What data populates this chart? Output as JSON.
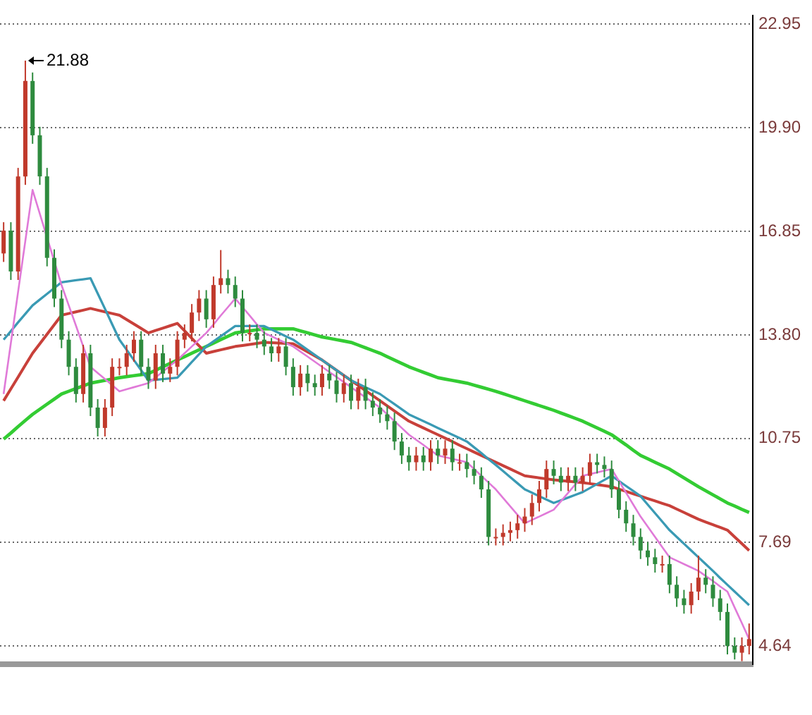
{
  "chart_data": {
    "type": "candlestick",
    "categories": [
      null,
      null,
      null,
      null,
      null,
      null,
      null,
      null,
      null,
      null,
      null,
      null,
      null,
      null,
      null,
      null,
      null,
      null,
      null,
      null,
      null,
      null,
      null,
      null,
      null,
      null,
      null,
      null,
      null,
      null,
      null,
      null,
      null,
      null,
      null,
      null,
      null,
      null,
      null,
      null,
      null,
      null,
      null,
      null,
      null,
      null,
      null,
      null,
      null,
      null,
      null,
      null,
      null,
      null,
      null,
      null,
      null,
      null,
      null,
      null,
      null,
      null,
      null,
      null,
      null,
      null,
      null,
      null,
      null,
      null,
      null,
      null,
      null,
      null,
      null,
      null,
      null,
      null,
      null,
      null,
      null,
      null,
      null,
      null,
      null,
      null,
      null,
      null,
      null,
      null,
      null,
      null,
      null,
      null,
      null,
      null,
      null,
      null,
      null,
      null,
      null,
      null,
      null,
      null
    ],
    "ohlc": [
      [
        16.2,
        17.12,
        15.95,
        16.87
      ],
      [
        16.87,
        17.12,
        15.42,
        15.67
      ],
      [
        15.67,
        18.72,
        15.42,
        18.47
      ],
      [
        18.47,
        21.88,
        18.22,
        21.28
      ],
      [
        21.28,
        21.53,
        19.43,
        19.68
      ],
      [
        19.68,
        19.93,
        18.22,
        18.47
      ],
      [
        18.47,
        18.72,
        15.82,
        16.07
      ],
      [
        16.07,
        16.32,
        14.62,
        14.87
      ],
      [
        14.87,
        15.12,
        13.41,
        13.66
      ],
      [
        13.66,
        13.91,
        12.61,
        12.86
      ],
      [
        12.86,
        13.11,
        11.81,
        12.06
      ],
      [
        12.06,
        13.51,
        11.81,
        13.26
      ],
      [
        13.26,
        13.51,
        11.41,
        11.66
      ],
      [
        11.66,
        11.91,
        10.81,
        11.06
      ],
      [
        11.06,
        11.91,
        10.81,
        11.66
      ],
      [
        11.66,
        13.11,
        11.41,
        12.86
      ],
      [
        12.86,
        13.11,
        12.61,
        12.86
      ],
      [
        12.86,
        13.51,
        12.61,
        13.26
      ],
      [
        13.26,
        13.91,
        13.01,
        13.66
      ],
      [
        13.66,
        13.91,
        12.61,
        12.86
      ],
      [
        12.86,
        13.11,
        12.21,
        12.46
      ],
      [
        12.46,
        13.51,
        12.21,
        13.26
      ],
      [
        13.26,
        13.51,
        12.41,
        12.66
      ],
      [
        12.66,
        13.11,
        12.41,
        12.86
      ],
      [
        12.86,
        13.91,
        12.61,
        13.66
      ],
      [
        13.66,
        14.11,
        13.41,
        13.86
      ],
      [
        13.86,
        14.71,
        13.61,
        14.46
      ],
      [
        14.46,
        15.12,
        14.21,
        14.87
      ],
      [
        14.87,
        15.12,
        14.01,
        14.26
      ],
      [
        14.26,
        15.52,
        14.01,
        15.27
      ],
      [
        15.27,
        16.3,
        15.02,
        15.47
      ],
      [
        15.47,
        15.72,
        15.02,
        15.27
      ],
      [
        15.27,
        15.52,
        14.62,
        14.87
      ],
      [
        14.87,
        15.12,
        13.61,
        13.86
      ],
      [
        13.86,
        14.11,
        13.61,
        13.86
      ],
      [
        13.86,
        14.11,
        13.41,
        13.66
      ],
      [
        13.66,
        13.91,
        13.21,
        13.46
      ],
      [
        13.46,
        13.71,
        13.01,
        13.26
      ],
      [
        13.26,
        13.71,
        13.01,
        13.46
      ],
      [
        13.46,
        13.71,
        12.61,
        12.86
      ],
      [
        12.86,
        13.11,
        12.01,
        12.26
      ],
      [
        12.26,
        12.91,
        12.01,
        12.66
      ],
      [
        12.66,
        12.91,
        12.13,
        12.38
      ],
      [
        12.38,
        12.63,
        12.01,
        12.26
      ],
      [
        12.26,
        12.91,
        12.01,
        12.66
      ],
      [
        12.66,
        12.91,
        12.21,
        12.46
      ],
      [
        12.46,
        12.71,
        11.81,
        12.06
      ],
      [
        12.06,
        12.63,
        11.81,
        12.38
      ],
      [
        12.38,
        12.63,
        11.61,
        11.86
      ],
      [
        11.86,
        12.51,
        11.61,
        12.26
      ],
      [
        12.26,
        12.51,
        11.61,
        11.86
      ],
      [
        11.86,
        12.11,
        11.41,
        11.66
      ],
      [
        11.66,
        11.91,
        11.21,
        11.46
      ],
      [
        11.46,
        11.71,
        11.01,
        11.26
      ],
      [
        11.26,
        11.51,
        10.41,
        10.66
      ],
      [
        10.66,
        10.91,
        10.0,
        10.25
      ],
      [
        10.25,
        10.5,
        9.8,
        10.05
      ],
      [
        10.05,
        10.5,
        9.8,
        10.25
      ],
      [
        10.25,
        10.5,
        9.8,
        10.05
      ],
      [
        10.05,
        10.7,
        9.8,
        10.45
      ],
      [
        10.45,
        10.7,
        10.0,
        10.25
      ],
      [
        10.25,
        10.7,
        10.0,
        10.45
      ],
      [
        10.45,
        10.7,
        9.8,
        10.05
      ],
      [
        10.05,
        10.3,
        9.8,
        10.05
      ],
      [
        10.05,
        10.3,
        9.6,
        9.85
      ],
      [
        9.85,
        10.1,
        9.4,
        9.65
      ],
      [
        9.65,
        9.9,
        9.0,
        9.25
      ],
      [
        9.25,
        9.5,
        7.6,
        7.85
      ],
      [
        7.85,
        8.1,
        7.6,
        7.85
      ],
      [
        7.85,
        8.22,
        7.6,
        7.97
      ],
      [
        7.97,
        8.3,
        7.72,
        8.05
      ],
      [
        8.05,
        8.5,
        7.8,
        8.25
      ],
      [
        8.25,
        8.7,
        8.0,
        8.45
      ],
      [
        8.45,
        9.1,
        8.2,
        8.85
      ],
      [
        8.85,
        9.5,
        8.6,
        9.25
      ],
      [
        9.25,
        10.1,
        9.0,
        9.85
      ],
      [
        9.85,
        10.1,
        9.4,
        9.65
      ],
      [
        9.65,
        9.9,
        9.2,
        9.45
      ],
      [
        9.45,
        9.9,
        9.2,
        9.65
      ],
      [
        9.65,
        9.9,
        9.2,
        9.45
      ],
      [
        9.45,
        9.9,
        9.2,
        9.65
      ],
      [
        9.65,
        10.3,
        9.4,
        10.05
      ],
      [
        10.05,
        10.3,
        9.72,
        9.97
      ],
      [
        9.97,
        10.22,
        9.6,
        9.85
      ],
      [
        9.85,
        10.1,
        9.0,
        9.25
      ],
      [
        9.25,
        9.5,
        8.4,
        8.65
      ],
      [
        8.65,
        8.9,
        8.0,
        8.25
      ],
      [
        8.25,
        8.5,
        7.6,
        7.85
      ],
      [
        7.85,
        8.1,
        7.2,
        7.45
      ],
      [
        7.45,
        7.7,
        7.0,
        7.25
      ],
      [
        7.25,
        7.5,
        6.8,
        7.05
      ],
      [
        7.05,
        7.3,
        6.8,
        7.05
      ],
      [
        7.05,
        7.3,
        6.19,
        6.44
      ],
      [
        6.44,
        6.69,
        5.79,
        6.04
      ],
      [
        6.04,
        6.29,
        5.59,
        5.84
      ],
      [
        5.84,
        6.49,
        5.59,
        6.24
      ],
      [
        6.24,
        7.3,
        5.99,
        6.65
      ],
      [
        6.65,
        6.9,
        6.19,
        6.44
      ],
      [
        6.44,
        6.69,
        5.79,
        6.04
      ],
      [
        6.04,
        6.29,
        5.39,
        5.64
      ],
      [
        5.64,
        5.89,
        4.39,
        4.64
      ],
      [
        4.64,
        4.89,
        4.24,
        4.44
      ],
      [
        4.44,
        4.89,
        4.19,
        4.64
      ],
      [
        4.64,
        5.3,
        4.39,
        4.84
      ]
    ],
    "series": [
      {
        "type": "line",
        "color": "#e07ad8",
        "values": [
          12.06,
          13.56,
          15.07,
          16.57,
          18.07,
          17.37,
          16.67,
          15.97,
          15.27,
          14.67,
          14.07,
          13.46,
          12.86,
          12.68,
          12.5,
          12.32,
          12.14,
          12.2,
          12.26,
          12.32,
          12.38,
          12.55,
          12.72,
          12.89,
          13.06,
          13.26,
          13.46,
          13.66,
          13.86,
          14.11,
          14.37,
          14.62,
          14.87,
          14.62,
          14.37,
          14.11,
          13.86,
          13.76,
          13.66,
          13.56,
          13.46,
          13.31,
          13.16,
          13.01,
          12.86,
          12.71,
          12.56,
          12.41,
          12.26,
          12.11,
          11.96,
          11.81,
          11.66,
          11.46,
          11.26,
          11.06,
          10.86,
          10.71,
          10.56,
          10.4,
          10.25,
          10.2,
          10.15,
          10.1,
          10.05,
          9.85,
          9.65,
          9.45,
          9.25,
          9.0,
          8.75,
          8.5,
          8.25,
          8.35,
          8.45,
          8.55,
          8.65,
          8.9,
          9.15,
          9.4,
          9.65,
          9.7,
          9.75,
          9.8,
          9.85,
          9.5,
          9.15,
          8.8,
          8.45,
          8.15,
          7.85,
          7.55,
          7.25,
          7.15,
          7.05,
          6.95,
          6.85,
          6.7,
          6.55,
          6.39,
          6.24,
          5.77,
          5.31,
          4.84
        ]
      },
      {
        "type": "line",
        "color": "#3a9ab4",
        "values": [
          13.66,
          13.91,
          14.17,
          14.42,
          14.67,
          14.84,
          15.01,
          15.18,
          15.35,
          15.38,
          15.41,
          15.44,
          15.47,
          15.02,
          14.57,
          14.11,
          13.66,
          13.36,
          13.06,
          12.76,
          12.46,
          12.48,
          12.5,
          12.52,
          12.54,
          12.77,
          13.0,
          13.23,
          13.46,
          13.61,
          13.76,
          13.91,
          14.06,
          14.06,
          14.06,
          14.06,
          14.06,
          13.96,
          13.86,
          13.76,
          13.66,
          13.51,
          13.36,
          13.21,
          13.06,
          12.91,
          12.76,
          12.61,
          12.46,
          12.36,
          12.26,
          12.16,
          12.06,
          11.91,
          11.76,
          11.61,
          11.46,
          11.36,
          11.26,
          11.16,
          11.06,
          10.96,
          10.86,
          10.76,
          10.66,
          10.49,
          10.32,
          10.14,
          9.97,
          9.79,
          9.61,
          9.43,
          9.25,
          9.15,
          9.05,
          8.95,
          8.85,
          8.93,
          9.01,
          9.09,
          9.17,
          9.29,
          9.41,
          9.53,
          9.65,
          9.5,
          9.35,
          9.2,
          9.05,
          8.8,
          8.55,
          8.3,
          8.05,
          7.85,
          7.65,
          7.45,
          7.25,
          7.05,
          6.85,
          6.64,
          6.44,
          6.24,
          6.04,
          5.84
        ]
      },
      {
        "type": "line",
        "color": "#c8403a",
        "values": [
          11.86,
          12.21,
          12.56,
          12.91,
          13.26,
          13.54,
          13.82,
          14.1,
          14.38,
          14.43,
          14.48,
          14.53,
          14.58,
          14.53,
          14.48,
          14.43,
          14.38,
          14.25,
          14.12,
          13.99,
          13.86,
          13.93,
          14.0,
          14.07,
          14.14,
          13.92,
          13.7,
          13.48,
          13.26,
          13.31,
          13.36,
          13.41,
          13.46,
          13.49,
          13.52,
          13.55,
          13.58,
          13.57,
          13.56,
          13.55,
          13.54,
          13.42,
          13.3,
          13.18,
          13.06,
          12.91,
          12.76,
          12.61,
          12.46,
          12.31,
          12.16,
          12.01,
          11.86,
          11.71,
          11.56,
          11.41,
          11.26,
          11.16,
          11.06,
          10.96,
          10.86,
          10.76,
          10.66,
          10.55,
          10.45,
          10.35,
          10.25,
          10.15,
          10.05,
          9.95,
          9.85,
          9.75,
          9.65,
          9.62,
          9.59,
          9.56,
          9.53,
          9.51,
          9.49,
          9.47,
          9.45,
          9.42,
          9.39,
          9.36,
          9.33,
          9.26,
          9.19,
          9.12,
          9.05,
          8.98,
          8.91,
          8.84,
          8.77,
          8.67,
          8.57,
          8.47,
          8.37,
          8.29,
          8.21,
          8.13,
          8.05,
          7.85,
          7.65,
          7.45
        ]
      },
      {
        "type": "line",
        "color": "#33cc33",
        "values": [
          10.73,
          10.91,
          11.1,
          11.28,
          11.46,
          11.61,
          11.76,
          11.91,
          12.06,
          12.14,
          12.22,
          12.3,
          12.38,
          12.42,
          12.46,
          12.5,
          12.54,
          12.57,
          12.6,
          12.63,
          12.66,
          12.76,
          12.86,
          12.96,
          13.06,
          13.16,
          13.26,
          13.36,
          13.46,
          13.56,
          13.66,
          13.76,
          13.86,
          13.89,
          13.92,
          13.95,
          13.98,
          13.98,
          13.98,
          13.98,
          13.98,
          13.92,
          13.86,
          13.8,
          13.74,
          13.7,
          13.66,
          13.62,
          13.58,
          13.5,
          13.42,
          13.34,
          13.26,
          13.16,
          13.06,
          12.96,
          12.86,
          12.78,
          12.7,
          12.62,
          12.54,
          12.5,
          12.46,
          12.42,
          12.38,
          12.32,
          12.26,
          12.2,
          12.14,
          12.07,
          12.0,
          11.93,
          11.86,
          11.79,
          11.72,
          11.65,
          11.58,
          11.5,
          11.42,
          11.34,
          11.26,
          11.16,
          11.06,
          10.96,
          10.86,
          10.71,
          10.56,
          10.4,
          10.25,
          10.15,
          10.05,
          9.95,
          9.85,
          9.72,
          9.59,
          9.46,
          9.33,
          9.21,
          9.09,
          8.97,
          8.85,
          8.76,
          8.66,
          8.57
        ]
      }
    ],
    "ylim": [
      4.1,
      23.2
    ],
    "yticks": [
      4.64,
      7.69,
      10.75,
      {
        "value": 13.8,
        "label": "13.80"
      },
      16.85,
      {
        "value": 19.9,
        "label": "19.90"
      },
      22.95
    ],
    "grid": "y",
    "tick_labels": "y",
    "annotations": [
      "21.88"
    ]
  }
}
